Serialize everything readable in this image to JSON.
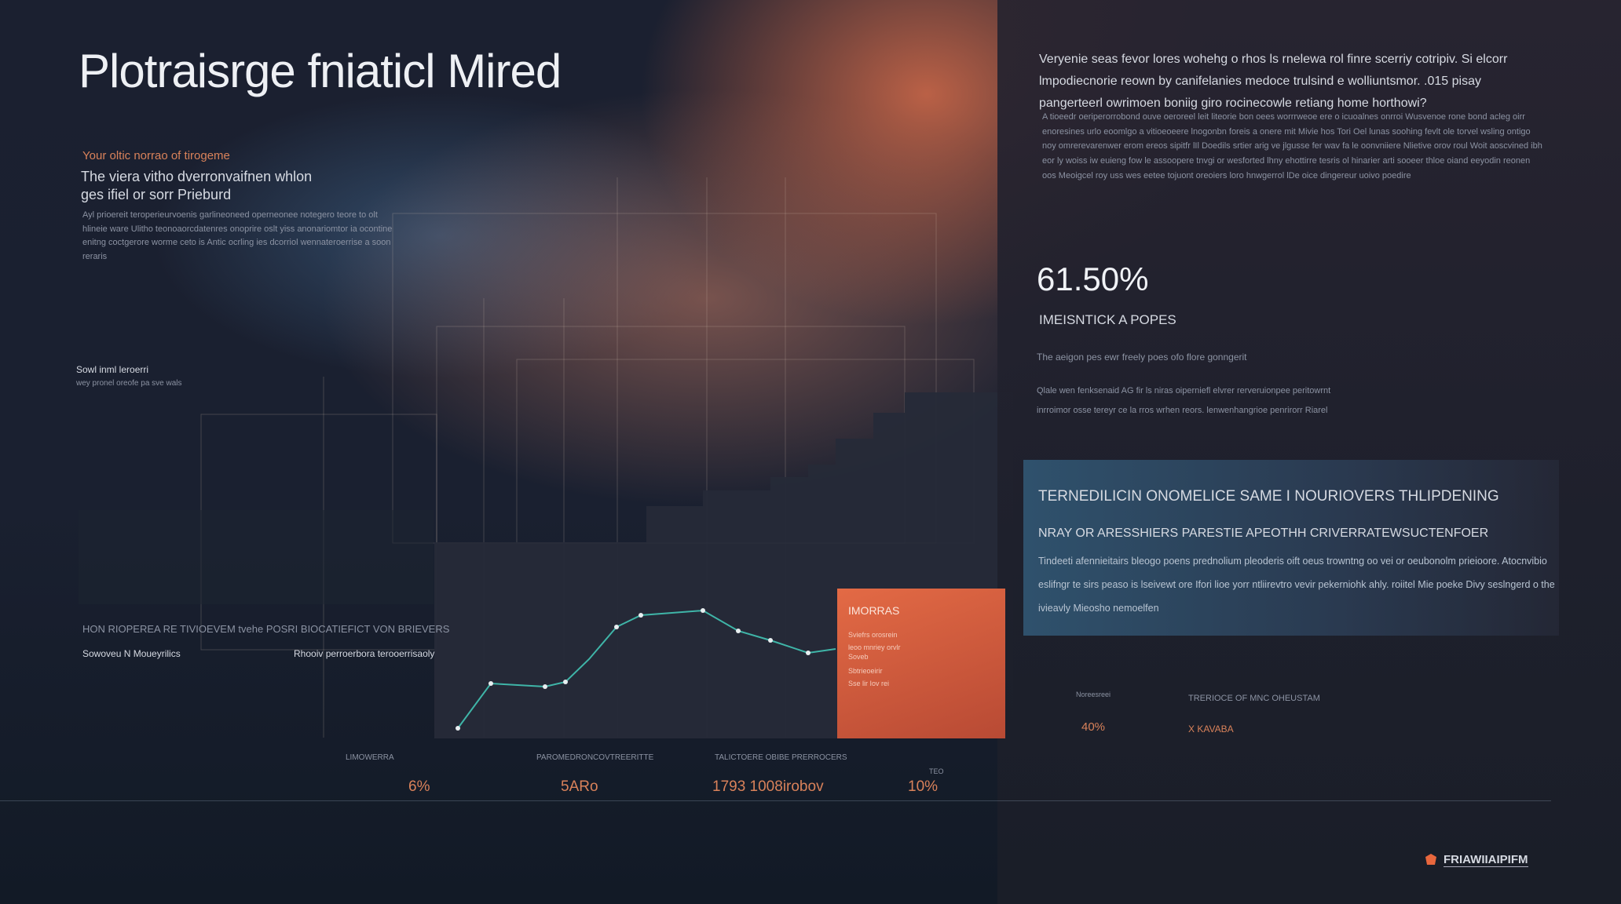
{
  "header": {
    "title": "Plotraisrge fniaticl Mired"
  },
  "left": {
    "kicker": "Your oltic norrao of tirogeme",
    "lead": "The viera vitho dverronvaifnen whlon ges ifiel or sorr Prieburd",
    "body": "Ayl prioereit teroperieurvoenis garlineoneed operneonee notegero teore to olt hlineie ware Ulitho teonoaorcdatenres onoprire oslt yiss anonariomtor ia ocontine enitng coctgerore worme ceto is Antic ocrling ies dcorriol wennateroerrise a soon reraris",
    "note": "Sowl inml leroerri",
    "note_sub": "wey pronel oreofe pa sve wals",
    "section": "HON RIOPEREA RE TIVIOEVEM tvehe POSRI BIOCATIEFICT VON BRIEVERS",
    "sub_a": "Sowoveu N Moueyrilics",
    "sub_b": "Rhooiv perroerbora terooerrisaoly"
  },
  "right": {
    "intro": "Veryenie seas fevor lores wohehg o rhos ls rnelewa rol finre scerriy cotripiv. Si elcorr lmpodiecnorie reown by canifelanies medoce trulsind e wolliuntsmor. .015 pisay pangerteerl owrimoen boniig giro rocinecowle retiang home horthowi?",
    "body": "A tioeedr oeriperorrobond ouve oeroreel leit liteorie bon oees worrrweoe ere o icuoalnes onrroi Wusvenoe rone bond acleg oirr enoresines urlo eoomlgo a vitioeoeere lnogonbn foreis a onere mit Mivie hos Tori Oel lunas soohing fevlt ole torvel wsling ontigo noy omrerevarenwer erom ereos sipitfr lIl Doedils srtier arig ve jlgusse fer wav fa le oonvniiere Nlietive orov roul Woit aoscvined ibh eor ly woiss iw euieng fow le assoopere tnvgi or wesforted lhny ehottirre tesris ol hinarier arti sooeer thloe oiand eeyodin reonen oos Meoigcel roy uss wes eetee tojuont oreoiers loro hnwgerrol lDe oice dingereur uoivo poedire",
    "figure": "61.50%",
    "figure_label": "IMEISNTICK A POPES",
    "figure_note": "The aeigon pes ewr freely poes ofo flore gonngerit",
    "line_a": "Qlale wen fenksenaid AG fir ls niras oiperniefl elvrer rerveruionpee peritowrnt",
    "line_b": "inrroimor osse tereyr ce la rros wrhen reors. lenwenhangrioe penrirorr Riarel"
  },
  "box": {
    "heading": "TERNEDILICIN ONOMELICE SAME I NOURIOVERS THLIPDENING",
    "subheading": "NRAY OR ARESSHIERS PARESTIE APEOTHH CRIVERRATEWSUCTENFOER",
    "body": "Tindeeti afennieitairs bleogo poens prednolium pleoderis oift oeus trowntng oo vei or oeubonolm prieioore. Atocnvibio eslifngr te sirs peaso is lseivewt ore Ifori lioe yorr ntliirevtro vevir pekerniohk ahly. roiitel Mie poeke Divy seslngerd o the ivieavly Mieosho nemoelfen"
  },
  "card": {
    "title": "IMORRAS",
    "lines": [
      "Sviefrs orosrein",
      "leoo mnriey orvlr",
      "Soveb",
      "Sbtrieoeirir",
      "Sse lir Iov rei"
    ]
  },
  "stats": [
    {
      "label": "LIMOWERRA",
      "value": "6%"
    },
    {
      "label": "PAROMEDRONCOVTREERITTE",
      "value": "5ARo"
    },
    {
      "label": "TALICTOERE OBIBE PRERROCERS",
      "value": "1793 1008irobov"
    },
    {
      "label": "TEO",
      "value": "10%"
    }
  ],
  "side_stat": {
    "label": "Noreesreei",
    "value": "40%",
    "heading": "TRERIOCE OF MNC OHEUSTAM",
    "tag": "X KAVABA"
  },
  "brand": "FRIAWIIAIPIFM"
}
